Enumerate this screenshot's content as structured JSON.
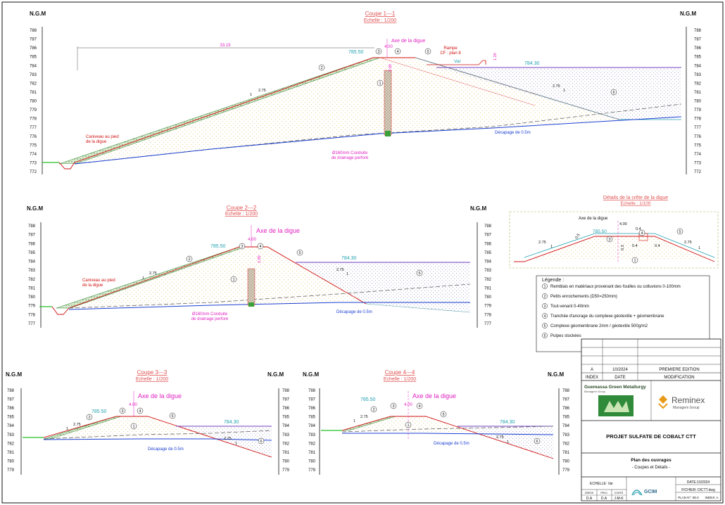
{
  "ngm_label": "N.G.M",
  "sections": [
    {
      "id": "s1",
      "title": "Coupe 1---1",
      "scale": "Echelle : 1/200",
      "elev_from": 788,
      "elev_to": 772,
      "axis_label": "Axe de la digue",
      "crest_width": "4.00",
      "crest_level": "785.50",
      "water_level": "784.30",
      "slope_h": "2.75",
      "slope_v": "1",
      "span_length": "33.19",
      "ramp_label": "Rampe",
      "ramp_sub": "CF : plan 8",
      "ramp_var": "Var",
      "ramp_height": "1.20",
      "drain_height": "2.00",
      "ditch_label_1": "Caniveau au pied",
      "ditch_label_2": "de la digue",
      "stripping": "Décapage de 0.5m",
      "pipe_label_1": "Ø160mm Conduite",
      "pipe_label_2": "de drainage perforé",
      "markers": [
        "1",
        "2",
        "3",
        "4",
        "5",
        "6"
      ]
    },
    {
      "id": "s2",
      "title": "Coupe 2---2",
      "scale": "Echelle : 1/200",
      "elev_from": 788,
      "elev_to": 777,
      "axis_label": "Axe de la digue",
      "crest_width": "4.00",
      "crest_level": "785.50",
      "water_level": "784.30",
      "slope_h": "2.75",
      "slope_v": "1",
      "drain_height": "2.00",
      "ditch_label_1": "Caniveau au pied",
      "ditch_label_2": "de la digue",
      "stripping": "Décapage de 0.5m",
      "pipe_label_1": "Ø160mm Conduite",
      "pipe_label_2": "de drainage perforé",
      "markers": [
        "1",
        "2",
        "3",
        "4",
        "5",
        "6"
      ]
    },
    {
      "id": "s3",
      "title": "Coupe 3---3",
      "scale": "Echelle : 1/200",
      "elev_from": 788,
      "elev_to": 779,
      "axis_label": "Axe de la digue",
      "crest_width": "4.00",
      "crest_level": "785.50",
      "water_level": "784.30",
      "slope_h": "2.75",
      "slope_v": "1",
      "stripping": "Décapage de 0.5m",
      "markers": [
        "1",
        "2",
        "3",
        "4",
        "5",
        "6"
      ]
    },
    {
      "id": "s4",
      "title": "Coupe 4---4",
      "scale": "Echelle : 1/200",
      "elev_from": 788,
      "elev_to": 779,
      "axis_label": "Axe de la digue",
      "crest_width": "4.00",
      "crest_level": "785.50",
      "water_level": "784.30",
      "slope_h": "2.75",
      "slope_v": "1",
      "stripping": "Décapage de 0.5m",
      "markers": [
        "1",
        "2",
        "3",
        "4",
        "5",
        "6"
      ]
    }
  ],
  "detail": {
    "title": "Détails de la crête de la digue",
    "scale": "Echelle : 1/100",
    "axis_label": "Axe de la digue",
    "crest_width": "4.00",
    "crest_level": "785.50",
    "slope_h": "2.75",
    "slope_v": "1",
    "dim_a": "0.4",
    "dim_b": "0.4",
    "dim_c": "0.4",
    "dim_d": "0.3",
    "dim_e": "0.5"
  },
  "legend": {
    "title": "Légende :",
    "items": [
      {
        "n": "1",
        "text": "Remblais en matériaux provenant des fouilles ou colluvions 0-100mm"
      },
      {
        "n": "2",
        "text": "Petits enrochements (D50=250mm)"
      },
      {
        "n": "3",
        "text": "Tout-venant 0-40mm"
      },
      {
        "n": "4",
        "text": "Tranchée d'ancrage du complexe géotextile + géomembrane"
      },
      {
        "n": "5",
        "text": "Complexe géomembrane 2mm / géotextile 500g/m2"
      },
      {
        "n": "6",
        "text": "Pulpes stockées"
      }
    ]
  },
  "titleblock": {
    "revision": {
      "index": "A",
      "date": "10/2024",
      "modif": "PREMIERE EDITION"
    },
    "headers": {
      "index": "INDEX",
      "date": "DATE",
      "modif": "MODIFICATION"
    },
    "client_logo_text": "Guemassa Green Metallurgy",
    "client_logo_sub": "Managem Group",
    "partner_logo_text": "Reminex",
    "partner_logo_sub": "Managem Group",
    "project": "PROJET SULFATE DE COBALT CTT",
    "drawing_title": "Plan des ouvrages",
    "drawing_sub": "- Coupes et Détails -",
    "echelle": "ECHELLE: Var",
    "date_label": "DATE:10/2024",
    "fichier": "FICHIER: DICTT.dwg",
    "plan_no": "PLAN N°: 08-2",
    "index_label": "INDEX: A",
    "signoff_heads": [
      "DRESS",
      "PROJ",
      "CONTR"
    ],
    "signoff_vals": [
      "D.A",
      "D.A",
      "J-M-K"
    ],
    "office_logo": "GCIM"
  }
}
